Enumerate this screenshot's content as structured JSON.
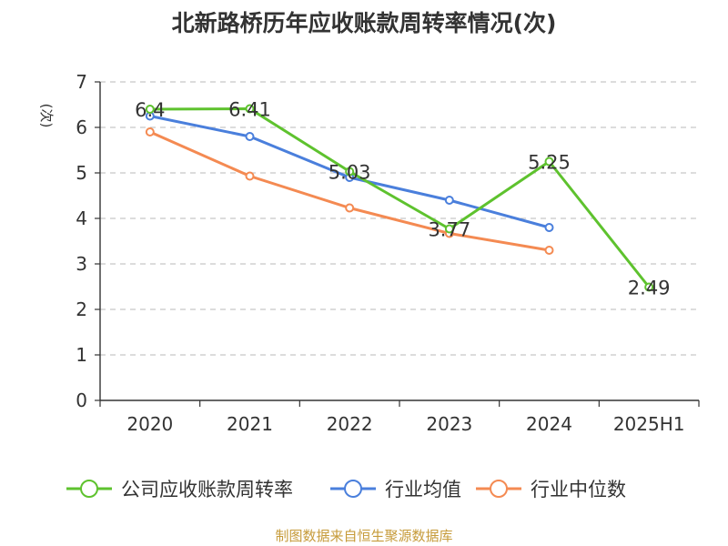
{
  "chart_data": {
    "type": "line",
    "title": "北新路桥历年应收账款周转率情况(次)",
    "ylabel": "(次)",
    "xlabel": "",
    "categories": [
      "2020",
      "2021",
      "2022",
      "2023",
      "2024",
      "2025H1"
    ],
    "ylim": [
      0,
      7
    ],
    "yticks": [
      "0",
      "1",
      "2",
      "3",
      "4",
      "5",
      "6",
      "7"
    ],
    "grid": true,
    "legend_position": "bottom",
    "series": [
      {
        "name": "公司应收账款周转率",
        "color": "#5ec22e",
        "values": [
          6.4,
          6.41,
          5.03,
          3.77,
          5.25,
          2.49
        ],
        "labels": [
          "6.4",
          "6.41",
          "5.03",
          "3.77",
          "5.25",
          "2.49"
        ]
      },
      {
        "name": "行业均值",
        "color": "#4a7fdc",
        "values": [
          6.25,
          5.8,
          4.9,
          4.4,
          3.8,
          null
        ]
      },
      {
        "name": "行业中位数",
        "color": "#f48a52",
        "values": [
          5.9,
          4.93,
          4.23,
          3.67,
          3.3,
          null
        ]
      }
    ]
  },
  "source": "制图数据来自恒生聚源数据库"
}
